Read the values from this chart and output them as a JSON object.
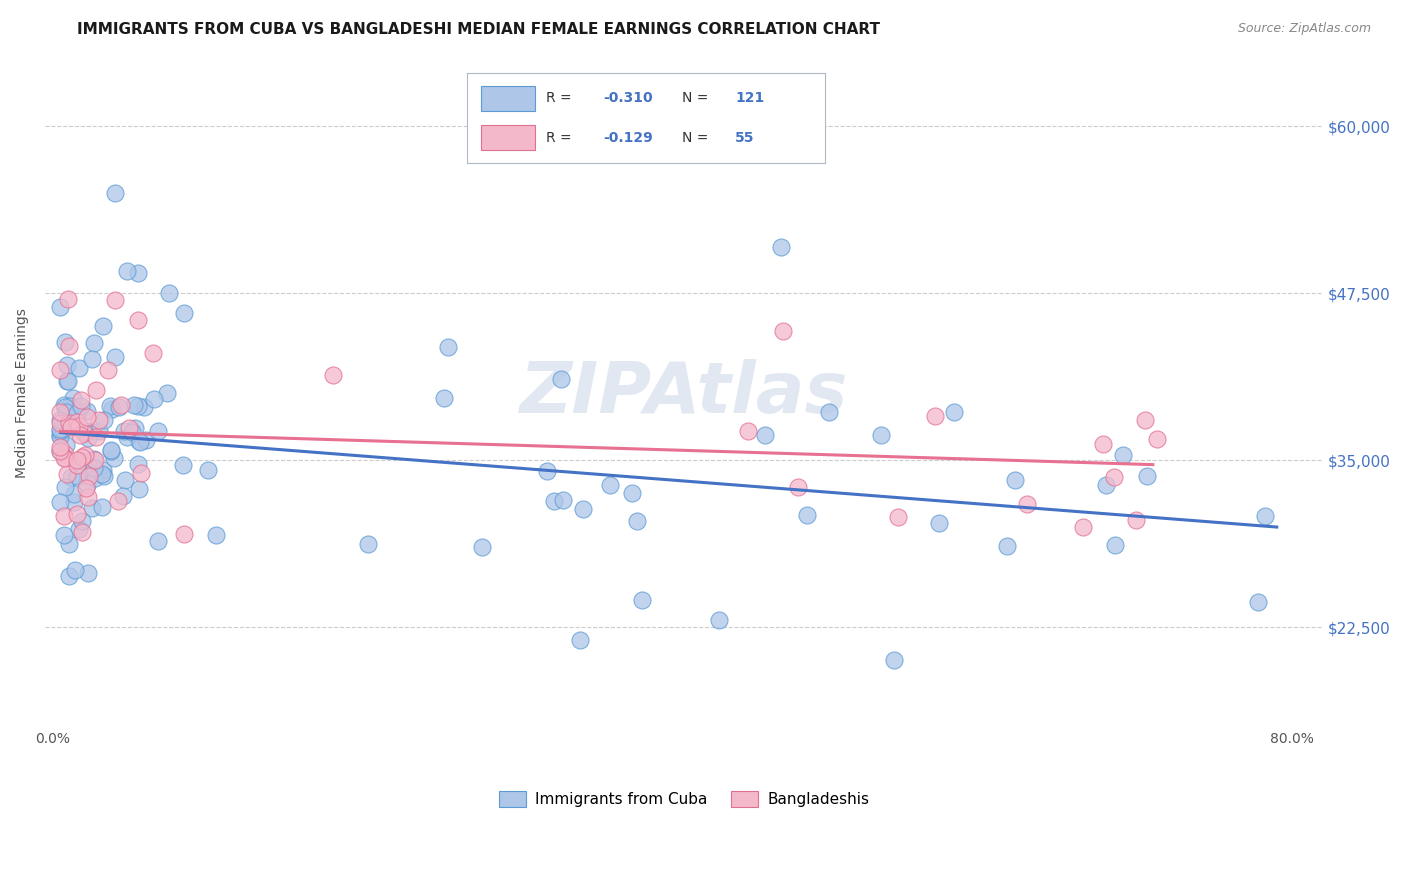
{
  "title": "IMMIGRANTS FROM CUBA VS BANGLADESHI MEDIAN FEMALE EARNINGS CORRELATION CHART",
  "source": "Source: ZipAtlas.com",
  "ylabel": "Median Female Earnings",
  "y_ticks": [
    22500,
    35000,
    47500,
    60000
  ],
  "y_tick_labels": [
    "$22,500",
    "$35,000",
    "$47,500",
    "$60,000"
  ],
  "x_ticks": [
    0.0,
    0.1,
    0.2,
    0.3,
    0.4,
    0.5,
    0.6,
    0.7,
    0.8
  ],
  "x_tick_labels": [
    "0.0%",
    "",
    "",
    "",
    "",
    "",
    "",
    "",
    "80.0%"
  ],
  "xlim": [
    -0.005,
    0.82
  ],
  "ylim": [
    15000,
    65000
  ],
  "watermark": "ZIPAtlas",
  "cuba_color": "#aec6e8",
  "cuba_edge_color": "#5b9bd5",
  "bangladesh_color": "#f4b8cb",
  "bangladesh_edge_color": "#e07090",
  "cuba_line_color": "#4472c4",
  "bangladesh_line_color": "#e87090",
  "title_fontsize": 11,
  "axis_label_fontsize": 10,
  "tick_label_fontsize": 10,
  "watermark_fontsize": 52,
  "watermark_color": "#d0daea",
  "background_color": "#ffffff",
  "grid_color": "#cccccc",
  "legend_label_cuba": "Immigrants from Cuba",
  "legend_label_bangladesh": "Bangladeshis",
  "legend_R_cuba": "-0.310",
  "legend_N_cuba": "121",
  "legend_R_bangladesh": "-0.129",
  "legend_N_bangladesh": "55",
  "right_tick_color": "#4472c4"
}
